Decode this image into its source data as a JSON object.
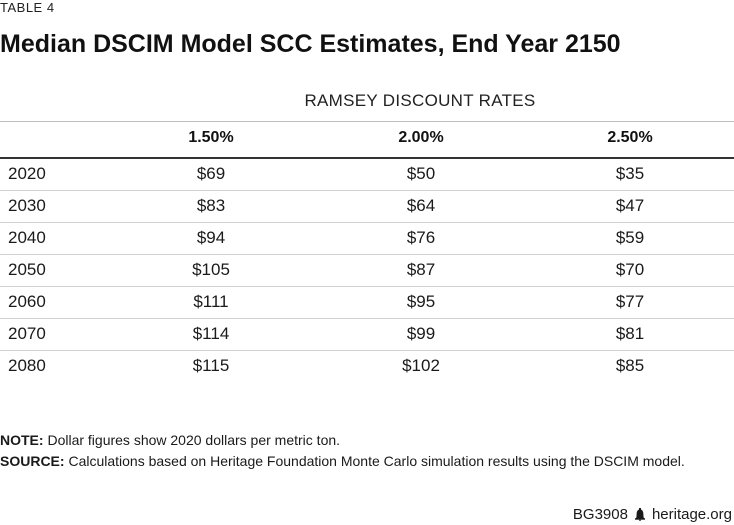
{
  "table_label": "TABLE 4",
  "title": "Median DSCIM Model SCC Estimates, End Year 2150",
  "group_header": "RAMSEY DISCOUNT RATES",
  "columns": [
    "1.50%",
    "2.00%",
    "2.50%"
  ],
  "rows": [
    {
      "year": "2020",
      "values": [
        "$69",
        "$50",
        "$35"
      ]
    },
    {
      "year": "2030",
      "values": [
        "$83",
        "$64",
        "$47"
      ]
    },
    {
      "year": "2040",
      "values": [
        "$94",
        "$76",
        "$59"
      ]
    },
    {
      "year": "2050",
      "values": [
        "$105",
        "$87",
        "$70"
      ]
    },
    {
      "year": "2060",
      "values": [
        "$111",
        "$95",
        "$77"
      ]
    },
    {
      "year": "2070",
      "values": [
        "$114",
        "$99",
        "$81"
      ]
    },
    {
      "year": "2080",
      "values": [
        "$115",
        "$102",
        "$85"
      ]
    }
  ],
  "notes": {
    "note_label": "NOTE:",
    "note_text": " Dollar figures show 2020 dollars per metric ton.",
    "source_label": "SOURCE:",
    "source_text": " Calculations based on Heritage Foundation Monte Carlo simulation results using the DSCIM model."
  },
  "footer": {
    "report_id": "BG3908",
    "icon": "liberty-bell-icon",
    "site": "heritage.org"
  }
}
